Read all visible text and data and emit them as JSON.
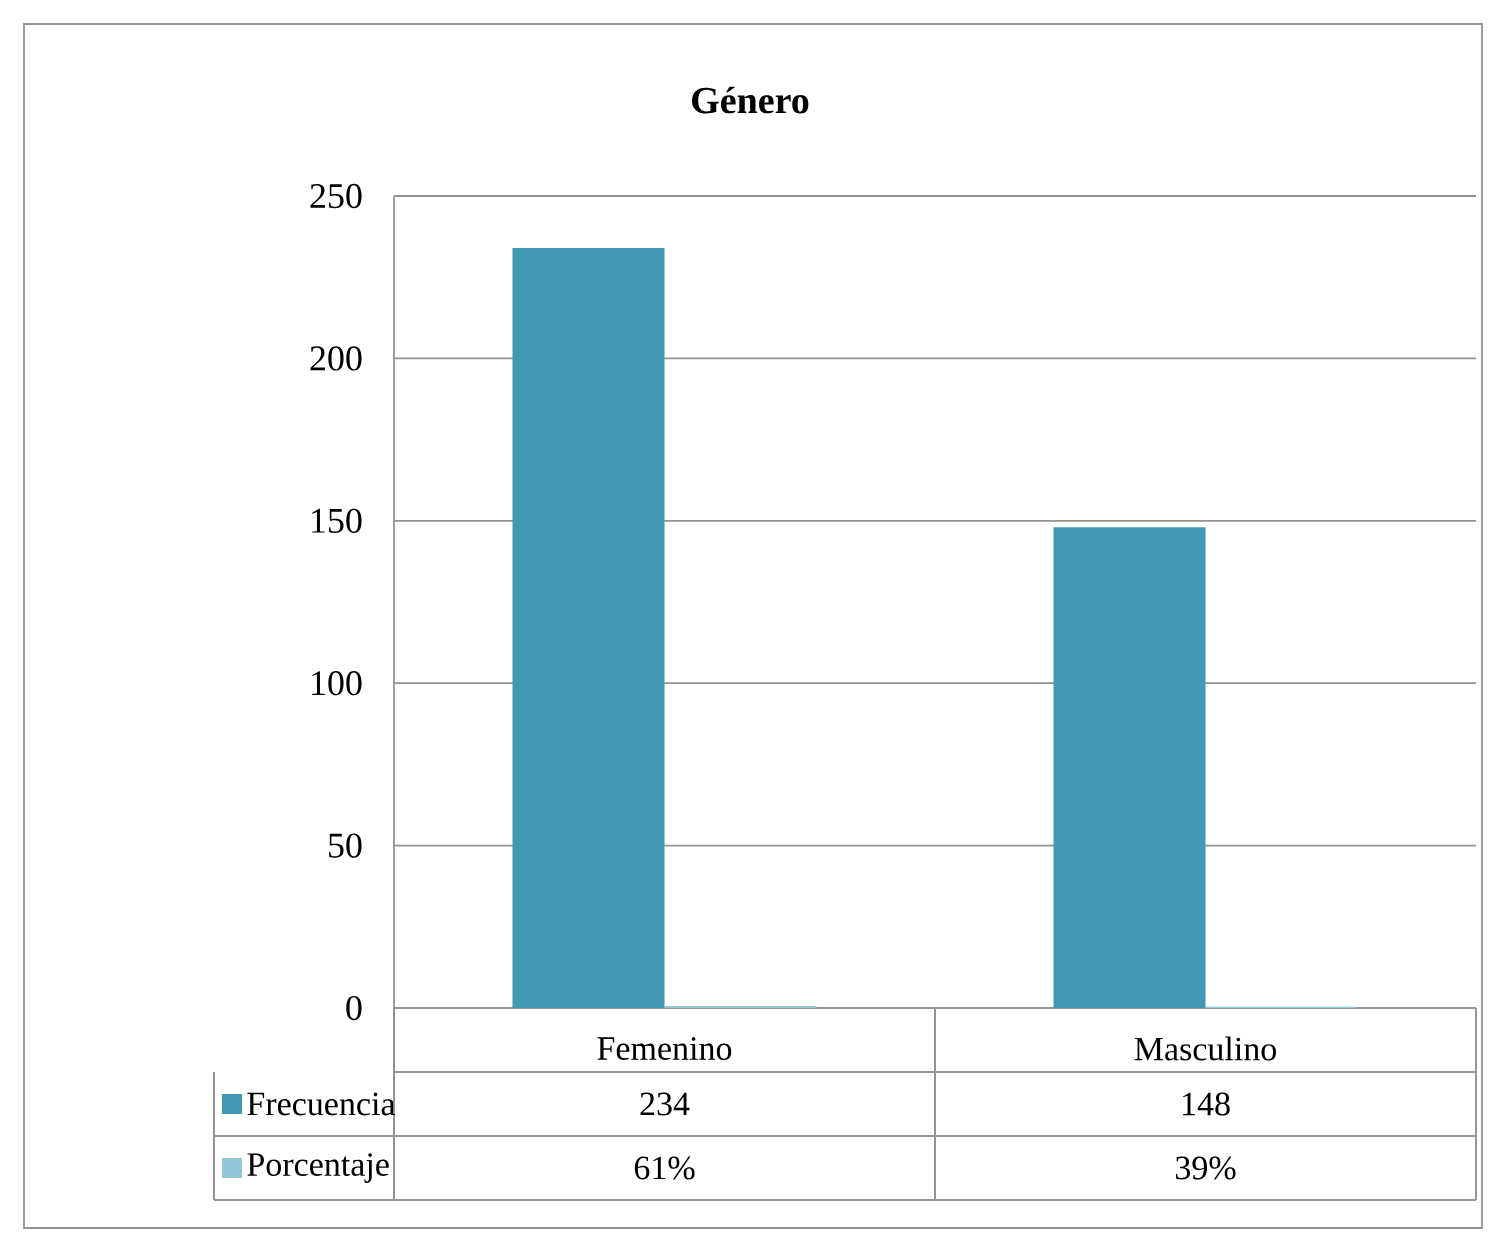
{
  "chart_data": {
    "type": "bar",
    "title": "Género",
    "categories": [
      "Femenino",
      "Masculino"
    ],
    "series": [
      {
        "name": "Frecuencia",
        "color": "#4299b3",
        "values": [
          234,
          148
        ],
        "value_labels": [
          "234",
          "148"
        ]
      },
      {
        "name": "Porcentaje",
        "color": "#93c6d9",
        "values": [
          0.61,
          0.39
        ],
        "value_labels": [
          "61%",
          "39%"
        ]
      }
    ],
    "ylim": [
      0,
      250
    ],
    "yticks": [
      0,
      50,
      100,
      150,
      200,
      250
    ],
    "grid": "y",
    "legend": "bottom left"
  }
}
